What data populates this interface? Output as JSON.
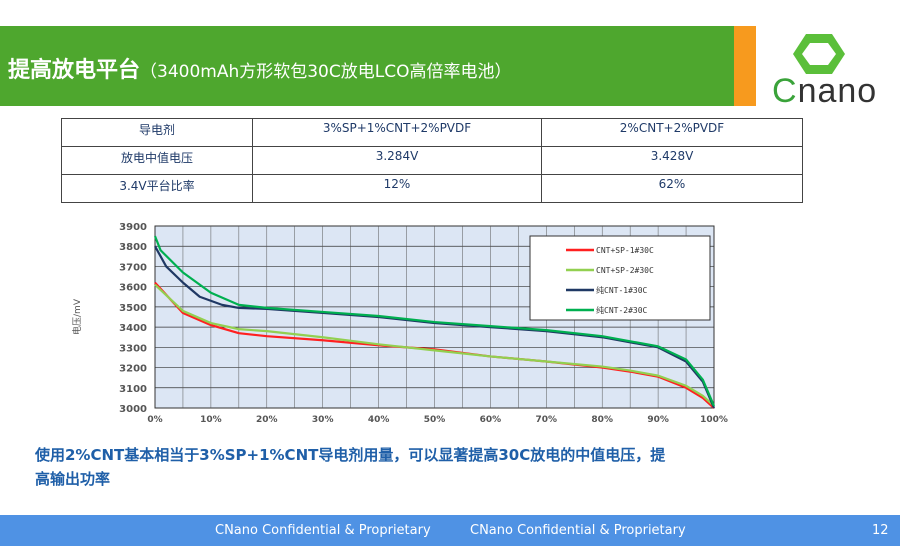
{
  "header": {
    "title": "提高放电平台",
    "subtitle": "（3400mAh方形软包30C放电LCO高倍率电池）"
  },
  "logo": {
    "text": "Cnano"
  },
  "table": {
    "rows": [
      [
        "导电剂",
        "3%SP+1%CNT+2%PVDF",
        "2%CNT+2%PVDF"
      ],
      [
        "放电中值电压",
        "3.284V",
        "3.428V"
      ],
      [
        "3.4V平台比率",
        "12%",
        "62%"
      ]
    ]
  },
  "chart_data": {
    "type": "line",
    "title": "",
    "xlabel": "",
    "ylabel": "电压/mV",
    "xlim": [
      0,
      100
    ],
    "ylim": [
      3000,
      3900
    ],
    "xticks": [
      "0%",
      "10%",
      "20%",
      "30%",
      "40%",
      "50%",
      "60%",
      "70%",
      "80%",
      "90%",
      "100%"
    ],
    "yticks": [
      "3000",
      "3100",
      "3200",
      "3300",
      "3400",
      "3500",
      "3600",
      "3700",
      "3800",
      "3900"
    ],
    "legend_position": "top-right",
    "grid": true,
    "series": [
      {
        "name": "CNT+SP-1#30C",
        "color": "#ff2020",
        "x": [
          0,
          5,
          10,
          15,
          20,
          30,
          40,
          50,
          60,
          70,
          80,
          85,
          90,
          95,
          98,
          100
        ],
        "y": [
          3620,
          3470,
          3410,
          3370,
          3355,
          3335,
          3310,
          3290,
          3255,
          3230,
          3200,
          3180,
          3155,
          3100,
          3050,
          3000
        ]
      },
      {
        "name": "CNT+SP-2#30C",
        "color": "#92d050",
        "x": [
          0,
          5,
          10,
          15,
          20,
          30,
          40,
          50,
          60,
          70,
          80,
          85,
          90,
          95,
          98,
          100
        ],
        "y": [
          3610,
          3480,
          3420,
          3390,
          3380,
          3350,
          3315,
          3285,
          3255,
          3230,
          3205,
          3185,
          3160,
          3110,
          3060,
          3010
        ]
      },
      {
        "name": "纯CNT-1#30C",
        "color": "#1f3864",
        "x": [
          0,
          2,
          5,
          8,
          12,
          15,
          20,
          30,
          40,
          50,
          60,
          70,
          80,
          90,
          95,
          98,
          100
        ],
        "y": [
          3800,
          3700,
          3620,
          3550,
          3510,
          3495,
          3490,
          3470,
          3450,
          3420,
          3400,
          3380,
          3350,
          3300,
          3230,
          3130,
          3000
        ]
      },
      {
        "name": "纯CNT-2#30C",
        "color": "#00b050",
        "x": [
          0,
          1,
          5,
          10,
          15,
          20,
          30,
          40,
          50,
          60,
          70,
          80,
          90,
          95,
          98,
          100
        ],
        "y": [
          3850,
          3780,
          3670,
          3570,
          3510,
          3495,
          3475,
          3455,
          3425,
          3405,
          3385,
          3355,
          3305,
          3240,
          3140,
          3010
        ]
      }
    ]
  },
  "note": "使用2%CNT基本相当于3%SP+1%CNT导电剂用量，可以显著提高30C放电的中值电压，提高输出功率",
  "footer": {
    "text1": "CNano Confidential & Proprietary",
    "text2": "CNano Confidential & Proprietary",
    "page": "12"
  }
}
